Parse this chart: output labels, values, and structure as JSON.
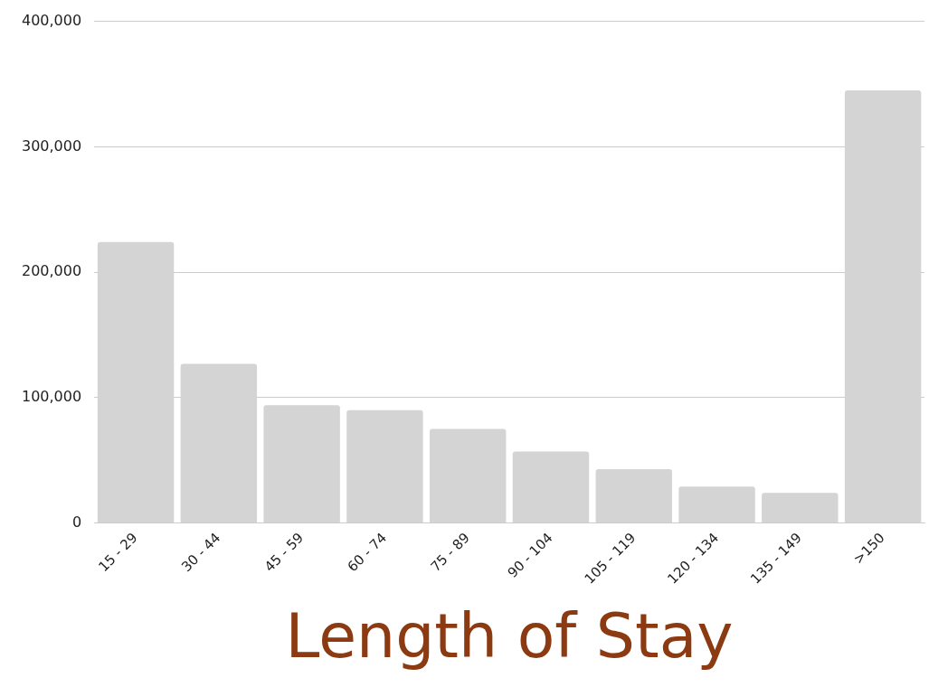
{
  "chart_data": {
    "type": "bar",
    "xlabel": "Length of Stay",
    "categories": [
      "15 - 29",
      "30 - 44",
      "45 - 59",
      "60 - 74",
      "75 - 89",
      "90 - 104",
      "105 - 119",
      "120 - 134",
      "135 - 149",
      ">150"
    ],
    "values": [
      224000,
      127000,
      94000,
      90000,
      75000,
      57000,
      43000,
      29000,
      24000,
      345000
    ],
    "color": "#d4d4d4",
    "ylim": [
      0,
      400000
    ],
    "yticks": [
      {
        "value": 0,
        "label": "0"
      },
      {
        "value": 100000,
        "label": "100,000"
      },
      {
        "value": 200000,
        "label": "200,000"
      },
      {
        "value": 300000,
        "label": "300,000"
      },
      {
        "value": 400000,
        "label": "400,000"
      }
    ],
    "grid": "y",
    "legend": false
  }
}
